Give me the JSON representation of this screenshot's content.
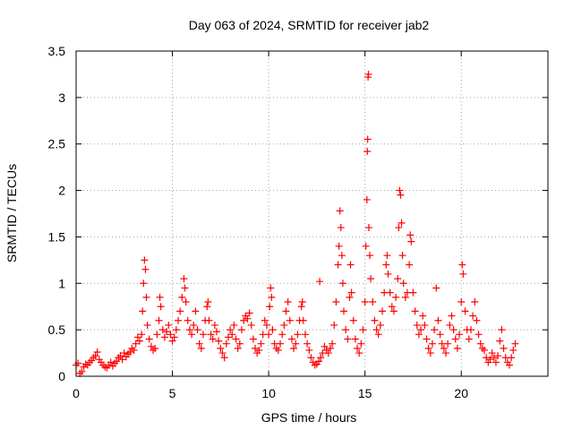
{
  "chart_data": {
    "type": "scatter",
    "title": "Day 063 of 2024, SRMTID for receiver jab2",
    "xlabel": "GPS time / hours",
    "ylabel": "SRMTID / TECUs",
    "xlim": [
      0,
      24.5
    ],
    "ylim": [
      0,
      3.5
    ],
    "x_ticks": [
      0,
      5,
      10,
      15,
      20
    ],
    "x_tick_labels": [
      "0",
      "5",
      "10",
      "15",
      "20"
    ],
    "y_ticks": [
      0,
      0.5,
      1,
      1.5,
      2,
      2.5,
      3,
      3.5
    ],
    "y_tick_labels": [
      "0",
      "0.5",
      "1",
      "1.5",
      "2",
      "2.5",
      "3",
      "3.5"
    ],
    "grid": true,
    "marker": "+",
    "series": [
      {
        "name": "jab2",
        "color": "#ff0000",
        "points": [
          [
            0.0,
            0.12
          ],
          [
            0.1,
            0.14
          ],
          [
            0.2,
            0.03
          ],
          [
            0.3,
            0.05
          ],
          [
            0.4,
            0.1
          ],
          [
            0.5,
            0.13
          ],
          [
            0.6,
            0.12
          ],
          [
            0.7,
            0.15
          ],
          [
            0.8,
            0.17
          ],
          [
            0.9,
            0.2
          ],
          [
            1.0,
            0.22
          ],
          [
            1.1,
            0.26
          ],
          [
            1.2,
            0.18
          ],
          [
            1.3,
            0.15
          ],
          [
            1.4,
            0.12
          ],
          [
            1.5,
            0.1
          ],
          [
            1.6,
            0.09
          ],
          [
            1.7,
            0.12
          ],
          [
            1.8,
            0.15
          ],
          [
            1.9,
            0.11
          ],
          [
            2.0,
            0.14
          ],
          [
            2.1,
            0.16
          ],
          [
            2.2,
            0.2
          ],
          [
            2.3,
            0.22
          ],
          [
            2.4,
            0.18
          ],
          [
            2.5,
            0.25
          ],
          [
            2.6,
            0.21
          ],
          [
            2.7,
            0.24
          ],
          [
            2.8,
            0.26
          ],
          [
            2.9,
            0.3
          ],
          [
            3.0,
            0.28
          ],
          [
            3.1,
            0.35
          ],
          [
            3.2,
            0.42
          ],
          [
            3.3,
            0.38
          ],
          [
            3.4,
            0.45
          ],
          [
            3.45,
            0.7
          ],
          [
            3.5,
            1.0
          ],
          [
            3.55,
            1.25
          ],
          [
            3.6,
            1.15
          ],
          [
            3.65,
            0.85
          ],
          [
            3.7,
            0.55
          ],
          [
            3.8,
            0.4
          ],
          [
            3.9,
            0.32
          ],
          [
            4.0,
            0.28
          ],
          [
            4.1,
            0.3
          ],
          [
            4.2,
            0.45
          ],
          [
            4.3,
            0.6
          ],
          [
            4.35,
            0.85
          ],
          [
            4.4,
            0.75
          ],
          [
            4.5,
            0.5
          ],
          [
            4.6,
            0.42
          ],
          [
            4.7,
            0.48
          ],
          [
            4.8,
            0.55
          ],
          [
            4.9,
            0.45
          ],
          [
            5.0,
            0.38
          ],
          [
            5.1,
            0.42
          ],
          [
            5.2,
            0.5
          ],
          [
            5.3,
            0.6
          ],
          [
            5.4,
            0.7
          ],
          [
            5.5,
            0.85
          ],
          [
            5.6,
            1.05
          ],
          [
            5.65,
            0.95
          ],
          [
            5.7,
            0.8
          ],
          [
            5.8,
            0.6
          ],
          [
            5.9,
            0.5
          ],
          [
            6.0,
            0.45
          ],
          [
            6.1,
            0.55
          ],
          [
            6.2,
            0.7
          ],
          [
            6.3,
            0.5
          ],
          [
            6.4,
            0.35
          ],
          [
            6.5,
            0.3
          ],
          [
            6.6,
            0.45
          ],
          [
            6.7,
            0.6
          ],
          [
            6.8,
            0.75
          ],
          [
            6.85,
            0.8
          ],
          [
            6.9,
            0.6
          ],
          [
            7.0,
            0.45
          ],
          [
            7.1,
            0.4
          ],
          [
            7.2,
            0.55
          ],
          [
            7.3,
            0.48
          ],
          [
            7.4,
            0.38
          ],
          [
            7.5,
            0.3
          ],
          [
            7.6,
            0.25
          ],
          [
            7.7,
            0.2
          ],
          [
            7.8,
            0.35
          ],
          [
            7.9,
            0.42
          ],
          [
            8.0,
            0.5
          ],
          [
            8.1,
            0.45
          ],
          [
            8.2,
            0.55
          ],
          [
            8.3,
            0.4
          ],
          [
            8.4,
            0.3
          ],
          [
            8.5,
            0.35
          ],
          [
            8.6,
            0.5
          ],
          [
            8.7,
            0.6
          ],
          [
            8.8,
            0.65
          ],
          [
            8.9,
            0.62
          ],
          [
            9.0,
            0.68
          ],
          [
            9.1,
            0.55
          ],
          [
            9.2,
            0.4
          ],
          [
            9.3,
            0.3
          ],
          [
            9.4,
            0.25
          ],
          [
            9.5,
            0.28
          ],
          [
            9.6,
            0.35
          ],
          [
            9.7,
            0.45
          ],
          [
            9.8,
            0.6
          ],
          [
            9.9,
            0.55
          ],
          [
            10.0,
            0.45
          ],
          [
            10.05,
            0.75
          ],
          [
            10.1,
            0.95
          ],
          [
            10.15,
            0.85
          ],
          [
            10.2,
            0.5
          ],
          [
            10.3,
            0.35
          ],
          [
            10.4,
            0.3
          ],
          [
            10.5,
            0.28
          ],
          [
            10.6,
            0.35
          ],
          [
            10.7,
            0.45
          ],
          [
            10.8,
            0.55
          ],
          [
            10.9,
            0.7
          ],
          [
            11.0,
            0.8
          ],
          [
            11.1,
            0.6
          ],
          [
            11.2,
            0.4
          ],
          [
            11.3,
            0.3
          ],
          [
            11.4,
            0.35
          ],
          [
            11.5,
            0.45
          ],
          [
            11.6,
            0.6
          ],
          [
            11.7,
            0.75
          ],
          [
            11.75,
            0.8
          ],
          [
            11.8,
            0.6
          ],
          [
            11.9,
            0.45
          ],
          [
            12.0,
            0.35
          ],
          [
            12.1,
            0.28
          ],
          [
            12.2,
            0.2
          ],
          [
            12.3,
            0.15
          ],
          [
            12.4,
            0.12
          ],
          [
            12.5,
            0.13
          ],
          [
            12.6,
            0.16
          ],
          [
            12.65,
            1.02
          ],
          [
            12.7,
            0.2
          ],
          [
            12.8,
            0.25
          ],
          [
            12.9,
            0.32
          ],
          [
            13.0,
            0.28
          ],
          [
            13.1,
            0.25
          ],
          [
            13.2,
            0.3
          ],
          [
            13.3,
            0.35
          ],
          [
            13.4,
            0.55
          ],
          [
            13.5,
            0.8
          ],
          [
            13.6,
            1.2
          ],
          [
            13.65,
            1.4
          ],
          [
            13.7,
            1.78
          ],
          [
            13.75,
            1.6
          ],
          [
            13.8,
            1.3
          ],
          [
            13.85,
            1.0
          ],
          [
            13.9,
            0.7
          ],
          [
            14.0,
            0.5
          ],
          [
            14.1,
            0.4
          ],
          [
            14.2,
            0.85
          ],
          [
            14.25,
            1.2
          ],
          [
            14.3,
            0.9
          ],
          [
            14.4,
            0.6
          ],
          [
            14.5,
            0.4
          ],
          [
            14.6,
            0.3
          ],
          [
            14.7,
            0.25
          ],
          [
            14.8,
            0.35
          ],
          [
            14.9,
            0.5
          ],
          [
            15.0,
            0.8
          ],
          [
            15.05,
            1.4
          ],
          [
            15.1,
            1.9
          ],
          [
            15.12,
            2.42
          ],
          [
            15.14,
            2.55
          ],
          [
            15.16,
            3.22
          ],
          [
            15.18,
            3.25
          ],
          [
            15.2,
            1.6
          ],
          [
            15.25,
            1.3
          ],
          [
            15.3,
            1.05
          ],
          [
            15.4,
            0.8
          ],
          [
            15.5,
            0.6
          ],
          [
            15.6,
            0.5
          ],
          [
            15.7,
            0.45
          ],
          [
            15.8,
            0.55
          ],
          [
            15.9,
            0.7
          ],
          [
            16.0,
            0.9
          ],
          [
            16.1,
            1.2
          ],
          [
            16.15,
            1.3
          ],
          [
            16.2,
            1.1
          ],
          [
            16.3,
            0.9
          ],
          [
            16.4,
            0.75
          ],
          [
            16.5,
            0.7
          ],
          [
            16.6,
            0.85
          ],
          [
            16.7,
            1.05
          ],
          [
            16.75,
            1.6
          ],
          [
            16.8,
            2.0
          ],
          [
            16.85,
            1.95
          ],
          [
            16.9,
            1.65
          ],
          [
            16.95,
            1.3
          ],
          [
            17.0,
            1.0
          ],
          [
            17.1,
            0.85
          ],
          [
            17.2,
            0.9
          ],
          [
            17.3,
            1.2
          ],
          [
            17.35,
            1.52
          ],
          [
            17.4,
            1.45
          ],
          [
            17.5,
            0.9
          ],
          [
            17.6,
            0.7
          ],
          [
            17.7,
            0.55
          ],
          [
            17.8,
            0.45
          ],
          [
            17.9,
            0.5
          ],
          [
            18.0,
            0.65
          ],
          [
            18.1,
            0.55
          ],
          [
            18.2,
            0.4
          ],
          [
            18.3,
            0.3
          ],
          [
            18.4,
            0.25
          ],
          [
            18.5,
            0.35
          ],
          [
            18.6,
            0.5
          ],
          [
            18.7,
            0.95
          ],
          [
            18.8,
            0.6
          ],
          [
            18.9,
            0.45
          ],
          [
            19.0,
            0.35
          ],
          [
            19.1,
            0.3
          ],
          [
            19.2,
            0.25
          ],
          [
            19.3,
            0.35
          ],
          [
            19.4,
            0.55
          ],
          [
            19.5,
            0.65
          ],
          [
            19.6,
            0.5
          ],
          [
            19.7,
            0.4
          ],
          [
            19.8,
            0.3
          ],
          [
            19.9,
            0.45
          ],
          [
            20.0,
            0.8
          ],
          [
            20.05,
            1.2
          ],
          [
            20.1,
            1.1
          ],
          [
            20.2,
            0.7
          ],
          [
            20.3,
            0.5
          ],
          [
            20.4,
            0.4
          ],
          [
            20.5,
            0.5
          ],
          [
            20.6,
            0.65
          ],
          [
            20.7,
            0.8
          ],
          [
            20.8,
            0.6
          ],
          [
            20.9,
            0.45
          ],
          [
            21.0,
            0.35
          ],
          [
            21.1,
            0.3
          ],
          [
            21.2,
            0.28
          ],
          [
            21.3,
            0.2
          ],
          [
            21.4,
            0.15
          ],
          [
            21.5,
            0.18
          ],
          [
            21.6,
            0.25
          ],
          [
            21.7,
            0.2
          ],
          [
            21.8,
            0.15
          ],
          [
            21.9,
            0.22
          ],
          [
            22.0,
            0.38
          ],
          [
            22.1,
            0.5
          ],
          [
            22.2,
            0.3
          ],
          [
            22.3,
            0.2
          ],
          [
            22.4,
            0.15
          ],
          [
            22.5,
            0.12
          ],
          [
            22.6,
            0.2
          ],
          [
            22.7,
            0.28
          ],
          [
            22.8,
            0.35
          ]
        ]
      }
    ]
  }
}
